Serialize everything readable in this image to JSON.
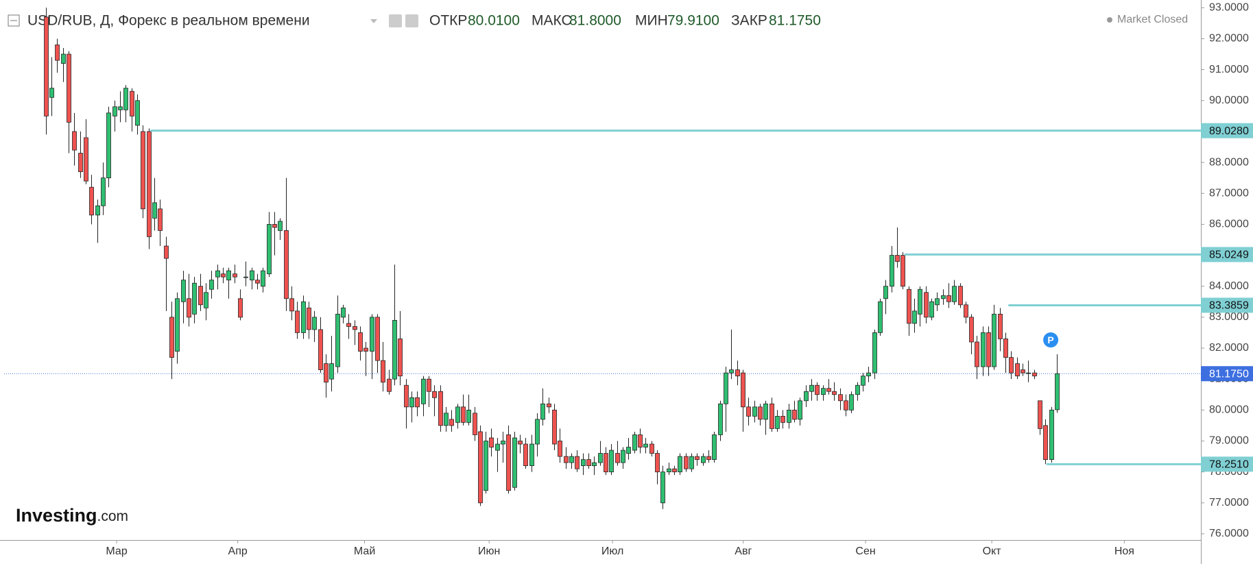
{
  "header": {
    "title": "USD/RUB, Д, Форекс в реальном времени",
    "stats": [
      {
        "label": "ОТКР",
        "value": "80.0100"
      },
      {
        "label": "МАКС",
        "value": "81.8000"
      },
      {
        "label": "МИН",
        "value": "79.9100"
      },
      {
        "label": "ЗАКР",
        "value": "81.1750"
      }
    ],
    "status": "Market Closed"
  },
  "logo": {
    "brand": "Investing",
    "suffix": ".com"
  },
  "chart_data": {
    "type": "candlestick",
    "up_color": "#2fbf71",
    "down_color": "#ef5350",
    "level_color": "#7fcfd3",
    "last_color": "#3d6fe0",
    "xlim": [
      -7.3,
      202.2
    ],
    "ylim": [
      75.8,
      93.25
    ],
    "xticks": [
      {
        "value": 12.4,
        "label": "Мар"
      },
      {
        "value": 33.6,
        "label": "Апр"
      },
      {
        "value": 55.8,
        "label": "Май"
      },
      {
        "value": 77.6,
        "label": "Июн"
      },
      {
        "value": 99.2,
        "label": "Июл"
      },
      {
        "value": 122.1,
        "label": "Авг"
      },
      {
        "value": 143.5,
        "label": "Сен"
      },
      {
        "value": 165.6,
        "label": "Окт"
      },
      {
        "value": 188.8,
        "label": "Ноя"
      }
    ],
    "yticks": [
      {
        "value": 76,
        "label": "76.0000"
      },
      {
        "value": 77,
        "label": "77.0000"
      },
      {
        "value": 78,
        "label": "78.0000"
      },
      {
        "value": 79,
        "label": "79.0000"
      },
      {
        "value": 80,
        "label": "80.0000"
      },
      {
        "value": 81,
        "label": "81.0000"
      },
      {
        "value": 82,
        "label": "82.0000"
      },
      {
        "value": 83,
        "label": "83.0000"
      },
      {
        "value": 84,
        "label": "84.0000"
      },
      {
        "value": 85,
        "label": "85.0000"
      },
      {
        "value": 86,
        "label": "86.0000"
      },
      {
        "value": 87,
        "label": "87.0000"
      },
      {
        "value": 88,
        "label": "88.0000"
      },
      {
        "value": 89,
        "label": "89.0000"
      },
      {
        "value": 90,
        "label": "90.0000"
      },
      {
        "value": 91,
        "label": "91.0000"
      },
      {
        "value": 92,
        "label": "92.0000"
      },
      {
        "value": 93,
        "label": "93.0000"
      }
    ],
    "levels": [
      {
        "value": 89.028,
        "label": "89.0280",
        "start": 18.3
      },
      {
        "value": 85.0249,
        "label": "85.0249",
        "start": 150.3
      },
      {
        "value": 83.3859,
        "label": "83.3859",
        "start": 168.5
      },
      {
        "value": 78.251,
        "label": "78.2510",
        "start": 175.2
      }
    ],
    "last": {
      "value": 81.175,
      "label": "81.1750"
    },
    "marker_label": "P",
    "x": [
      0,
      1,
      2,
      3,
      4,
      5,
      6,
      7,
      8,
      9,
      10,
      11,
      12,
      13,
      14,
      15,
      16,
      17,
      18,
      19,
      20,
      21,
      22,
      23,
      24,
      25,
      26,
      27,
      28,
      29,
      30,
      31,
      32,
      33,
      34,
      35,
      36,
      37,
      38,
      39,
      40,
      41,
      42,
      43,
      44,
      45,
      46,
      47,
      48,
      49,
      50,
      51,
      52,
      53,
      54,
      55,
      56,
      57,
      58,
      59,
      60,
      61,
      62,
      63,
      64,
      65,
      66,
      67,
      68,
      69,
      70,
      71,
      72,
      73,
      74,
      75,
      76,
      77,
      78,
      79,
      80,
      81,
      82,
      83,
      84,
      85,
      86,
      87,
      88,
      89,
      90,
      91,
      92,
      93,
      94,
      95,
      96,
      97,
      98,
      99,
      100,
      101,
      102,
      103,
      104,
      105,
      106,
      107,
      108,
      109,
      110,
      111,
      112,
      113,
      114,
      115,
      116,
      117,
      118,
      119,
      120,
      121,
      122,
      123,
      124,
      125,
      126,
      127,
      128,
      129,
      130,
      131,
      132,
      133,
      134,
      135,
      136,
      137,
      138,
      139,
      140,
      141,
      142,
      143,
      144,
      145,
      146,
      147,
      148,
      149,
      150,
      151,
      152,
      153,
      154,
      155,
      156,
      157,
      158,
      159,
      160,
      161,
      162,
      163,
      164,
      165,
      166,
      167,
      168,
      169,
      170,
      171,
      172,
      173,
      174,
      175,
      176,
      177
    ],
    "ohlc": [
      [
        92.7,
        93.0,
        88.9,
        89.5
      ],
      [
        90.1,
        91.4,
        89.5,
        90.4
      ],
      [
        91.8,
        92.0,
        90.9,
        91.3
      ],
      [
        91.2,
        91.7,
        90.6,
        91.5
      ],
      [
        91.5,
        91.6,
        88.3,
        89.3
      ],
      [
        89.0,
        89.6,
        87.9,
        88.4
      ],
      [
        88.3,
        89.0,
        87.5,
        87.7
      ],
      [
        88.8,
        89.4,
        87.3,
        87.4
      ],
      [
        87.2,
        87.6,
        86.0,
        86.3
      ],
      [
        86.3,
        86.8,
        85.4,
        86.6
      ],
      [
        86.6,
        88.0,
        86.3,
        87.5
      ],
      [
        87.5,
        89.8,
        87.2,
        89.6
      ],
      [
        89.5,
        90.0,
        89.0,
        89.8
      ],
      [
        89.7,
        90.3,
        89.3,
        89.8
      ],
      [
        89.7,
        90.5,
        89.3,
        90.4
      ],
      [
        90.3,
        90.4,
        89.0,
        89.5
      ],
      [
        89.2,
        90.2,
        88.9,
        90.0
      ],
      [
        89.0,
        89.2,
        86.2,
        86.5
      ],
      [
        89.0,
        89.1,
        85.2,
        85.6
      ],
      [
        86.2,
        87.5,
        85.8,
        86.7
      ],
      [
        86.5,
        86.8,
        85.3,
        85.8
      ],
      [
        85.3,
        85.6,
        83.2,
        84.9
      ],
      [
        83.0,
        83.5,
        81.0,
        81.7
      ],
      [
        81.9,
        83.8,
        81.5,
        83.6
      ],
      [
        83.5,
        84.5,
        82.8,
        84.2
      ],
      [
        83.6,
        84.4,
        82.7,
        83.0
      ],
      [
        83.1,
        84.3,
        82.8,
        84.1
      ],
      [
        84.0,
        84.4,
        83.2,
        83.4
      ],
      [
        83.3,
        84.1,
        82.9,
        83.8
      ],
      [
        83.9,
        84.5,
        83.6,
        84.2
      ],
      [
        84.3,
        84.7,
        83.9,
        84.5
      ],
      [
        84.4,
        84.6,
        84.1,
        84.3
      ],
      [
        84.2,
        84.6,
        83.6,
        84.5
      ],
      [
        84.4,
        84.7,
        84.1,
        84.3
      ],
      [
        83.6,
        83.9,
        82.9,
        83.0
      ],
      [
        84.3,
        84.8,
        84.0,
        84.3
      ],
      [
        84.2,
        84.6,
        83.9,
        84.5
      ],
      [
        84.2,
        84.4,
        83.9,
        84.1
      ],
      [
        84.0,
        84.6,
        83.8,
        84.5
      ],
      [
        84.4,
        86.4,
        84.3,
        86.0
      ],
      [
        86.0,
        86.4,
        85.0,
        85.9
      ],
      [
        85.8,
        86.2,
        85.5,
        86.1
      ],
      [
        85.8,
        87.5,
        83.2,
        83.6
      ],
      [
        83.6,
        84.0,
        82.9,
        83.2
      ],
      [
        83.2,
        83.5,
        82.3,
        82.5
      ],
      [
        82.5,
        83.7,
        82.3,
        83.5
      ],
      [
        83.3,
        83.5,
        82.3,
        82.6
      ],
      [
        82.6,
        83.2,
        82.2,
        83.0
      ],
      [
        82.6,
        83.0,
        81.2,
        81.3
      ],
      [
        81.5,
        81.8,
        80.4,
        80.9
      ],
      [
        81.0,
        82.4,
        80.6,
        81.5
      ],
      [
        81.4,
        83.7,
        81.2,
        83.1
      ],
      [
        83.0,
        83.4,
        82.8,
        83.3
      ],
      [
        82.8,
        83.1,
        82.3,
        82.7
      ],
      [
        82.7,
        82.9,
        82.1,
        82.6
      ],
      [
        82.5,
        82.7,
        81.6,
        81.9
      ],
      [
        82.0,
        82.2,
        81.1,
        81.9
      ],
      [
        81.9,
        83.1,
        81.0,
        83.0
      ],
      [
        83.0,
        83.1,
        81.2,
        81.6
      ],
      [
        81.6,
        82.2,
        80.6,
        80.9
      ],
      [
        81.0,
        81.3,
        80.5,
        80.6
      ],
      [
        81.0,
        84.7,
        80.8,
        82.9
      ],
      [
        82.3,
        83.2,
        80.8,
        81.1
      ],
      [
        80.8,
        81.0,
        79.4,
        80.1
      ],
      [
        80.1,
        80.6,
        79.6,
        80.4
      ],
      [
        80.4,
        80.6,
        79.8,
        80.1
      ],
      [
        80.2,
        81.1,
        79.8,
        81.0
      ],
      [
        81.0,
        81.1,
        80.1,
        80.6
      ],
      [
        80.6,
        80.8,
        79.8,
        80.4
      ],
      [
        80.6,
        80.8,
        79.3,
        79.5
      ],
      [
        79.5,
        80.1,
        79.3,
        79.9
      ],
      [
        79.7,
        80.0,
        79.3,
        79.5
      ],
      [
        79.6,
        80.2,
        79.4,
        80.1
      ],
      [
        80.1,
        80.5,
        79.5,
        79.6
      ],
      [
        79.6,
        80.5,
        79.5,
        80.0
      ],
      [
        79.9,
        80.1,
        79.0,
        79.2
      ],
      [
        79.3,
        79.5,
        76.9,
        77.0
      ],
      [
        77.4,
        79.3,
        77.3,
        79.0
      ],
      [
        79.1,
        79.4,
        78.5,
        78.8
      ],
      [
        78.7,
        79.1,
        78.0,
        78.9
      ],
      [
        78.9,
        79.3,
        78.3,
        79.0
      ],
      [
        79.2,
        79.5,
        77.3,
        77.4
      ],
      [
        77.5,
        79.3,
        77.4,
        79.1
      ],
      [
        79.0,
        79.2,
        78.6,
        78.9
      ],
      [
        78.9,
        79.1,
        78.1,
        78.2
      ],
      [
        78.2,
        79.2,
        78.0,
        78.9
      ],
      [
        78.9,
        79.9,
        78.5,
        79.7
      ],
      [
        79.7,
        80.7,
        79.5,
        80.2
      ],
      [
        80.2,
        80.4,
        79.9,
        80.1
      ],
      [
        80.0,
        80.2,
        78.7,
        78.9
      ],
      [
        79.0,
        79.4,
        78.3,
        78.5
      ],
      [
        78.5,
        78.8,
        78.1,
        78.3
      ],
      [
        78.3,
        78.6,
        78.1,
        78.5
      ],
      [
        78.5,
        78.7,
        78.0,
        78.1
      ],
      [
        78.2,
        78.6,
        77.9,
        78.4
      ],
      [
        78.4,
        78.6,
        78.1,
        78.2
      ],
      [
        78.2,
        78.5,
        77.9,
        78.3
      ],
      [
        78.3,
        79.0,
        78.2,
        78.6
      ],
      [
        78.6,
        78.8,
        77.9,
        78.0
      ],
      [
        78.0,
        78.9,
        77.9,
        78.7
      ],
      [
        78.6,
        79.0,
        78.2,
        78.3
      ],
      [
        78.3,
        78.8,
        78.1,
        78.7
      ],
      [
        78.6,
        79.1,
        78.4,
        78.8
      ],
      [
        78.7,
        79.3,
        78.6,
        79.2
      ],
      [
        79.2,
        79.4,
        78.6,
        78.8
      ],
      [
        78.8,
        79.1,
        78.6,
        78.9
      ],
      [
        78.9,
        79.0,
        78.5,
        78.6
      ],
      [
        78.6,
        78.7,
        77.6,
        78.0
      ],
      [
        77.0,
        78.2,
        76.8,
        78.0
      ],
      [
        78.0,
        78.3,
        77.9,
        78.1
      ],
      [
        78.1,
        78.2,
        77.9,
        78.0
      ],
      [
        78.0,
        78.6,
        77.9,
        78.5
      ],
      [
        78.5,
        78.6,
        78.0,
        78.1
      ],
      [
        78.1,
        78.6,
        78.0,
        78.5
      ],
      [
        78.5,
        78.6,
        78.2,
        78.4
      ],
      [
        78.3,
        78.6,
        78.2,
        78.5
      ],
      [
        78.5,
        78.7,
        78.3,
        78.4
      ],
      [
        78.4,
        79.3,
        78.3,
        79.2
      ],
      [
        79.2,
        80.3,
        79.0,
        80.2
      ],
      [
        80.2,
        81.4,
        79.3,
        81.2
      ],
      [
        81.2,
        82.6,
        81.0,
        81.3
      ],
      [
        81.3,
        81.6,
        80.8,
        81.1
      ],
      [
        81.2,
        81.3,
        79.3,
        80.1
      ],
      [
        80.1,
        80.4,
        79.5,
        79.8
      ],
      [
        79.8,
        80.3,
        79.6,
        80.1
      ],
      [
        80.1,
        80.2,
        79.5,
        79.7
      ],
      [
        79.7,
        80.3,
        79.2,
        80.2
      ],
      [
        80.2,
        80.4,
        79.3,
        79.4
      ],
      [
        79.4,
        80.0,
        79.3,
        79.8
      ],
      [
        79.8,
        80.0,
        79.4,
        79.6
      ],
      [
        79.6,
        80.2,
        79.4,
        80.0
      ],
      [
        80.0,
        80.3,
        79.6,
        79.7
      ],
      [
        79.7,
        80.4,
        79.5,
        80.3
      ],
      [
        80.3,
        80.8,
        80.1,
        80.6
      ],
      [
        80.6,
        81.0,
        80.3,
        80.8
      ],
      [
        80.8,
        80.9,
        80.3,
        80.5
      ],
      [
        80.5,
        80.8,
        80.3,
        80.7
      ],
      [
        80.7,
        81.0,
        80.5,
        80.6
      ],
      [
        80.6,
        80.9,
        80.3,
        80.5
      ],
      [
        80.5,
        80.7,
        80.0,
        80.3
      ],
      [
        80.3,
        80.5,
        79.8,
        80.0
      ],
      [
        80.0,
        80.6,
        79.9,
        80.5
      ],
      [
        80.5,
        80.9,
        80.3,
        80.8
      ],
      [
        80.8,
        81.2,
        80.6,
        81.1
      ],
      [
        81.1,
        81.4,
        80.9,
        81.2
      ],
      [
        81.2,
        82.6,
        81.0,
        82.5
      ],
      [
        82.5,
        83.6,
        82.4,
        83.5
      ],
      [
        83.6,
        84.2,
        83.1,
        84.0
      ],
      [
        84.0,
        85.3,
        83.8,
        85.0
      ],
      [
        85.0,
        85.9,
        84.6,
        84.8
      ],
      [
        85.0,
        85.1,
        83.9,
        84.0
      ],
      [
        83.9,
        84.0,
        82.4,
        82.8
      ],
      [
        82.8,
        83.6,
        82.5,
        83.2
      ],
      [
        83.1,
        84.0,
        82.7,
        83.9
      ],
      [
        83.8,
        84.0,
        82.8,
        83.0
      ],
      [
        83.0,
        83.6,
        82.9,
        83.5
      ],
      [
        83.4,
        83.8,
        83.2,
        83.6
      ],
      [
        83.6,
        83.9,
        83.4,
        83.7
      ],
      [
        83.7,
        84.1,
        83.3,
        83.5
      ],
      [
        83.5,
        84.2,
        83.4,
        84.0
      ],
      [
        84.0,
        84.1,
        83.3,
        83.4
      ],
      [
        83.4,
        83.5,
        82.8,
        83.0
      ],
      [
        83.0,
        83.1,
        81.8,
        82.2
      ],
      [
        82.2,
        82.4,
        81.0,
        81.4
      ],
      [
        81.4,
        82.7,
        81.1,
        82.5
      ],
      [
        82.5,
        82.7,
        81.1,
        81.4
      ],
      [
        81.4,
        83.4,
        81.3,
        83.1
      ],
      [
        83.1,
        83.3,
        81.9,
        82.3
      ],
      [
        82.3,
        82.5,
        81.2,
        81.7
      ],
      [
        81.7,
        81.9,
        81.0,
        81.2
      ],
      [
        81.5,
        81.7,
        81.0,
        81.1
      ],
      [
        81.3,
        81.5,
        81.1,
        81.2
      ],
      [
        81.2,
        81.6,
        80.9,
        81.2
      ],
      [
        81.2,
        81.3,
        81.0,
        81.1
      ],
      [
        80.3,
        80.3,
        79.2,
        79.4
      ],
      [
        79.5,
        79.7,
        78.25,
        78.4
      ],
      [
        78.4,
        80.1,
        78.3,
        80.0
      ],
      [
        80.01,
        81.8,
        79.91,
        81.175
      ]
    ]
  }
}
